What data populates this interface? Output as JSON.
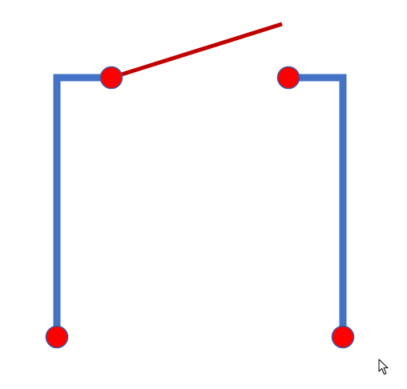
{
  "diagram": {
    "description": "",
    "colors": {
      "background": "#ffffff",
      "wire": "#4472c4",
      "switch_lever": "#c00000",
      "terminal_fill": "#ff0000",
      "terminal_stroke": "#3b5aa0"
    },
    "switch_state": "open",
    "elements": {
      "left_wire": "left-wire",
      "right_wire": "right-wire",
      "lever": "switch-lever",
      "terminals": [
        "top-left-terminal",
        "top-right-terminal",
        "bottom-left-terminal",
        "bottom-right-terminal"
      ]
    }
  },
  "cursor": {
    "icon": "arrow-cursor-icon"
  }
}
